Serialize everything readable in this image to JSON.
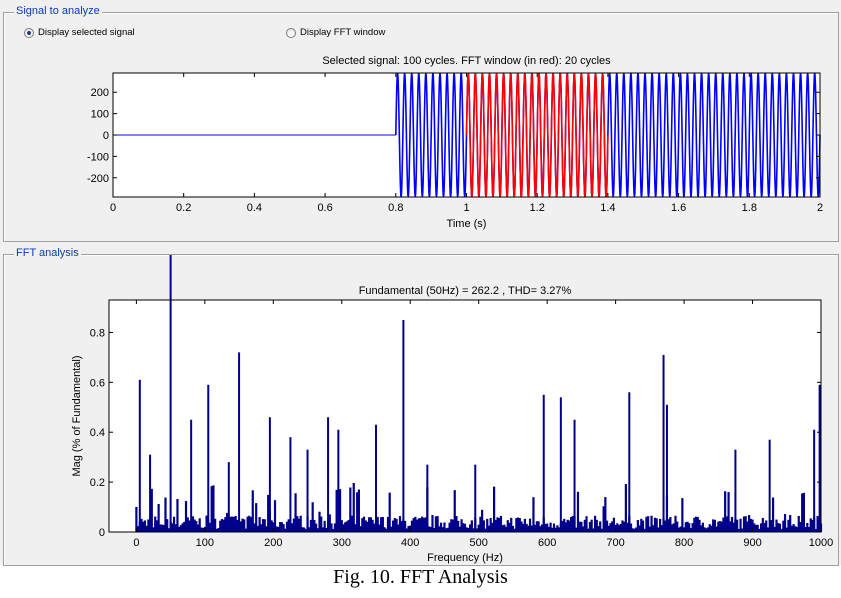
{
  "panels": {
    "signal_title": "Signal to analyze",
    "fft_title": "FFT analysis"
  },
  "radios": {
    "display_selected": {
      "label": "Display selected signal",
      "checked": true
    },
    "display_fft": {
      "label": "Display FFT window",
      "checked": false
    }
  },
  "caption": "Fig. 10. FFT Analysis",
  "chart_data": [
    {
      "type": "line",
      "title": "Selected signal: 100 cycles. FFT window (in red): 20 cycles",
      "xlabel": "Time (s)",
      "ylabel": "",
      "xlim": [
        0,
        2
      ],
      "ylim": [
        -290,
        290
      ],
      "xticks": [
        0,
        0.2,
        0.4,
        0.6,
        0.8,
        1,
        1.2,
        1.4,
        1.6,
        1.8,
        2
      ],
      "xtick_labels": [
        "0",
        "0.2",
        "0.4",
        "0.6",
        "0.8",
        "1",
        "1.2",
        "1.4",
        "1.6",
        "1.8",
        "2"
      ],
      "yticks": [
        -200,
        -100,
        0,
        100,
        200
      ],
      "ytick_labels": [
        "-200",
        "-100",
        "0",
        "100",
        "200"
      ],
      "signal": {
        "zero_until": 0.8,
        "frequency_hz": 50,
        "amplitude": 290,
        "color": "#0000ff"
      },
      "fft_window": {
        "start": 1.0,
        "end": 1.4,
        "color": "#ff0000"
      }
    },
    {
      "type": "bar",
      "title": "Fundamental (50Hz) = 262.2 , THD= 3.27%",
      "xlabel": "Frequency (Hz)",
      "ylabel": "Mag (% of Fundamental)",
      "xlim": [
        -40,
        1000
      ],
      "ylim": [
        0,
        0.93
      ],
      "xticks": [
        0,
        100,
        200,
        300,
        400,
        500,
        600,
        700,
        800,
        900,
        1000
      ],
      "xtick_labels": [
        "0",
        "100",
        "200",
        "300",
        "400",
        "500",
        "600",
        "700",
        "800",
        "900",
        "1000"
      ],
      "yticks": [
        0,
        0.2,
        0.4,
        0.6,
        0.8
      ],
      "ytick_labels": [
        "0",
        "0.2",
        "0.4",
        "0.6",
        "0.8"
      ],
      "color": "#00008b",
      "peaks": [
        {
          "x": 5,
          "y": 0.61
        },
        {
          "x": 20,
          "y": 0.31
        },
        {
          "x": 50,
          "y": 1.12
        },
        {
          "x": 80,
          "y": 0.45
        },
        {
          "x": 105,
          "y": 0.59
        },
        {
          "x": 135,
          "y": 0.28
        },
        {
          "x": 150,
          "y": 0.72
        },
        {
          "x": 195,
          "y": 0.46
        },
        {
          "x": 225,
          "y": 0.38
        },
        {
          "x": 250,
          "y": 0.33
        },
        {
          "x": 280,
          "y": 0.46
        },
        {
          "x": 295,
          "y": 0.41
        },
        {
          "x": 350,
          "y": 0.43
        },
        {
          "x": 390,
          "y": 0.85
        },
        {
          "x": 425,
          "y": 0.27
        },
        {
          "x": 495,
          "y": 0.27
        },
        {
          "x": 595,
          "y": 0.55
        },
        {
          "x": 620,
          "y": 0.54
        },
        {
          "x": 640,
          "y": 0.45
        },
        {
          "x": 720,
          "y": 0.56
        },
        {
          "x": 770,
          "y": 0.71
        },
        {
          "x": 775,
          "y": 0.51
        },
        {
          "x": 875,
          "y": 0.33
        },
        {
          "x": 925,
          "y": 0.37
        },
        {
          "x": 990,
          "y": 0.41
        },
        {
          "x": 998,
          "y": 0.59
        }
      ],
      "noise_floor": 0.06,
      "noise_max": 0.2
    }
  ]
}
